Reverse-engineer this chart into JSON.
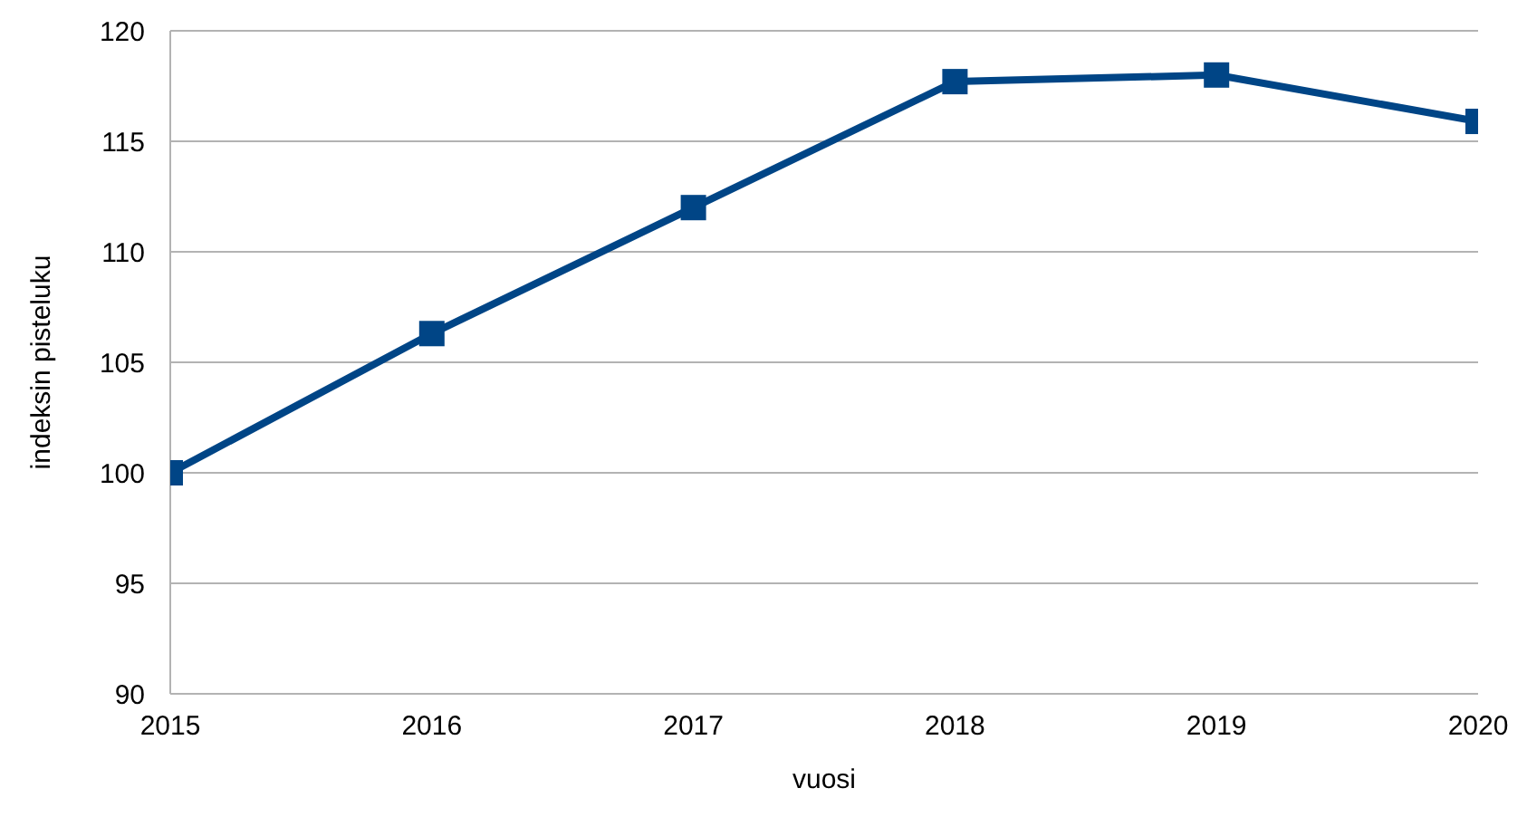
{
  "chart_data": {
    "type": "line",
    "xlabel": "vuosi",
    "ylabel": "indeksin pisteluku",
    "x": [
      2015,
      2016,
      2017,
      2018,
      2019,
      2020
    ],
    "series": [
      {
        "color": "#004586",
        "values": [
          100,
          106.3,
          112,
          117.7,
          118,
          115.9
        ]
      }
    ],
    "xlim": [
      2015,
      2020
    ],
    "xticks": [
      2015,
      2016,
      2017,
      2018,
      2019,
      2020
    ],
    "ylim": [
      90,
      120
    ],
    "yticks": [
      90,
      95,
      100,
      105,
      110,
      115,
      120
    ],
    "grid": "y",
    "marker": "square",
    "line_style": "solid",
    "legend": false
  }
}
